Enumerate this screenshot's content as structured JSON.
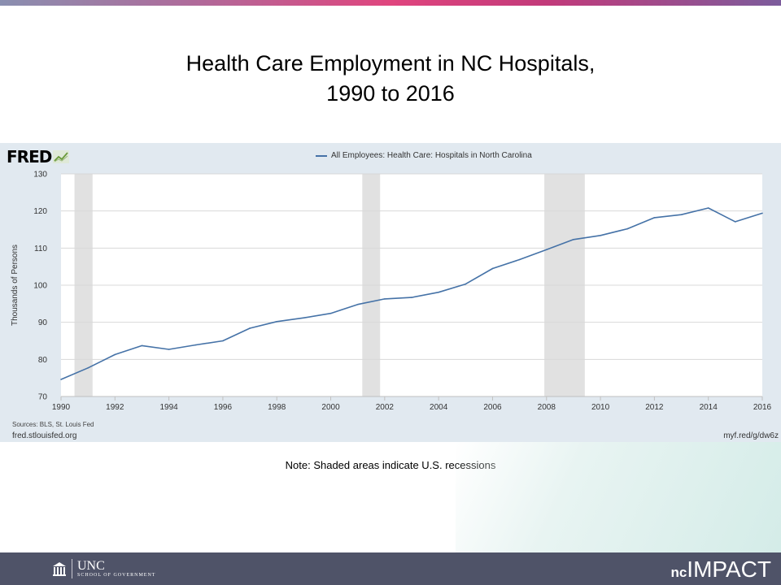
{
  "slide": {
    "title_line1": "Health Care Employment in NC Hospitals,",
    "title_line2": "1990 to 2016",
    "note": "Note: Shaded areas indicate U.S. recessions"
  },
  "fred": {
    "logo_text": "FRED",
    "sources": "Sources: BLS, St. Louis Fed",
    "site_left": "fred.stlouisfed.org",
    "site_right": "myf.red/g/dw6z"
  },
  "footer": {
    "unc_name": "UNC",
    "unc_school": "SCHOOL OF GOVERNMENT",
    "brand_prefix": "nc",
    "brand_main": "IMPACT"
  },
  "colors": {
    "series": "#4572a7",
    "recession": "#e1e1e1",
    "grid": "#d8d8d8",
    "panel": "#e1e9f0",
    "footer": "#4f5368"
  },
  "chart_data": {
    "type": "line",
    "title": "",
    "xlabel": "",
    "ylabel": "Thousands of Persons",
    "xlim": [
      1990,
      2016
    ],
    "ylim": [
      70,
      130
    ],
    "x_ticks": [
      1990,
      1992,
      1994,
      1996,
      1998,
      2000,
      2002,
      2004,
      2006,
      2008,
      2010,
      2012,
      2014,
      2016
    ],
    "y_ticks": [
      70,
      80,
      90,
      100,
      110,
      120,
      130
    ],
    "grid": true,
    "legend_position": "top-center",
    "recessions": [
      {
        "start": 1990.5,
        "end": 1991.17
      },
      {
        "start": 2001.17,
        "end": 2001.83
      },
      {
        "start": 2007.92,
        "end": 2009.42
      }
    ],
    "series": [
      {
        "name": "All Employees: Health Care: Hospitals in North Carolina",
        "x": [
          1990,
          1991,
          1992,
          1993,
          1994,
          1995,
          1996,
          1997,
          1998,
          1999,
          2000,
          2001,
          2002,
          2003,
          2004,
          2005,
          2006,
          2007,
          2008,
          2009,
          2010,
          2011,
          2012,
          2013,
          2014,
          2015,
          2016
        ],
        "values": [
          74.6,
          77.7,
          81.3,
          83.7,
          82.7,
          83.9,
          85.0,
          88.4,
          90.2,
          91.2,
          92.4,
          94.8,
          96.3,
          96.7,
          98.1,
          100.3,
          104.5,
          106.9,
          109.6,
          112.3,
          113.4,
          115.2,
          118.2,
          119.0,
          120.8,
          117.1,
          119.4
        ]
      }
    ]
  }
}
